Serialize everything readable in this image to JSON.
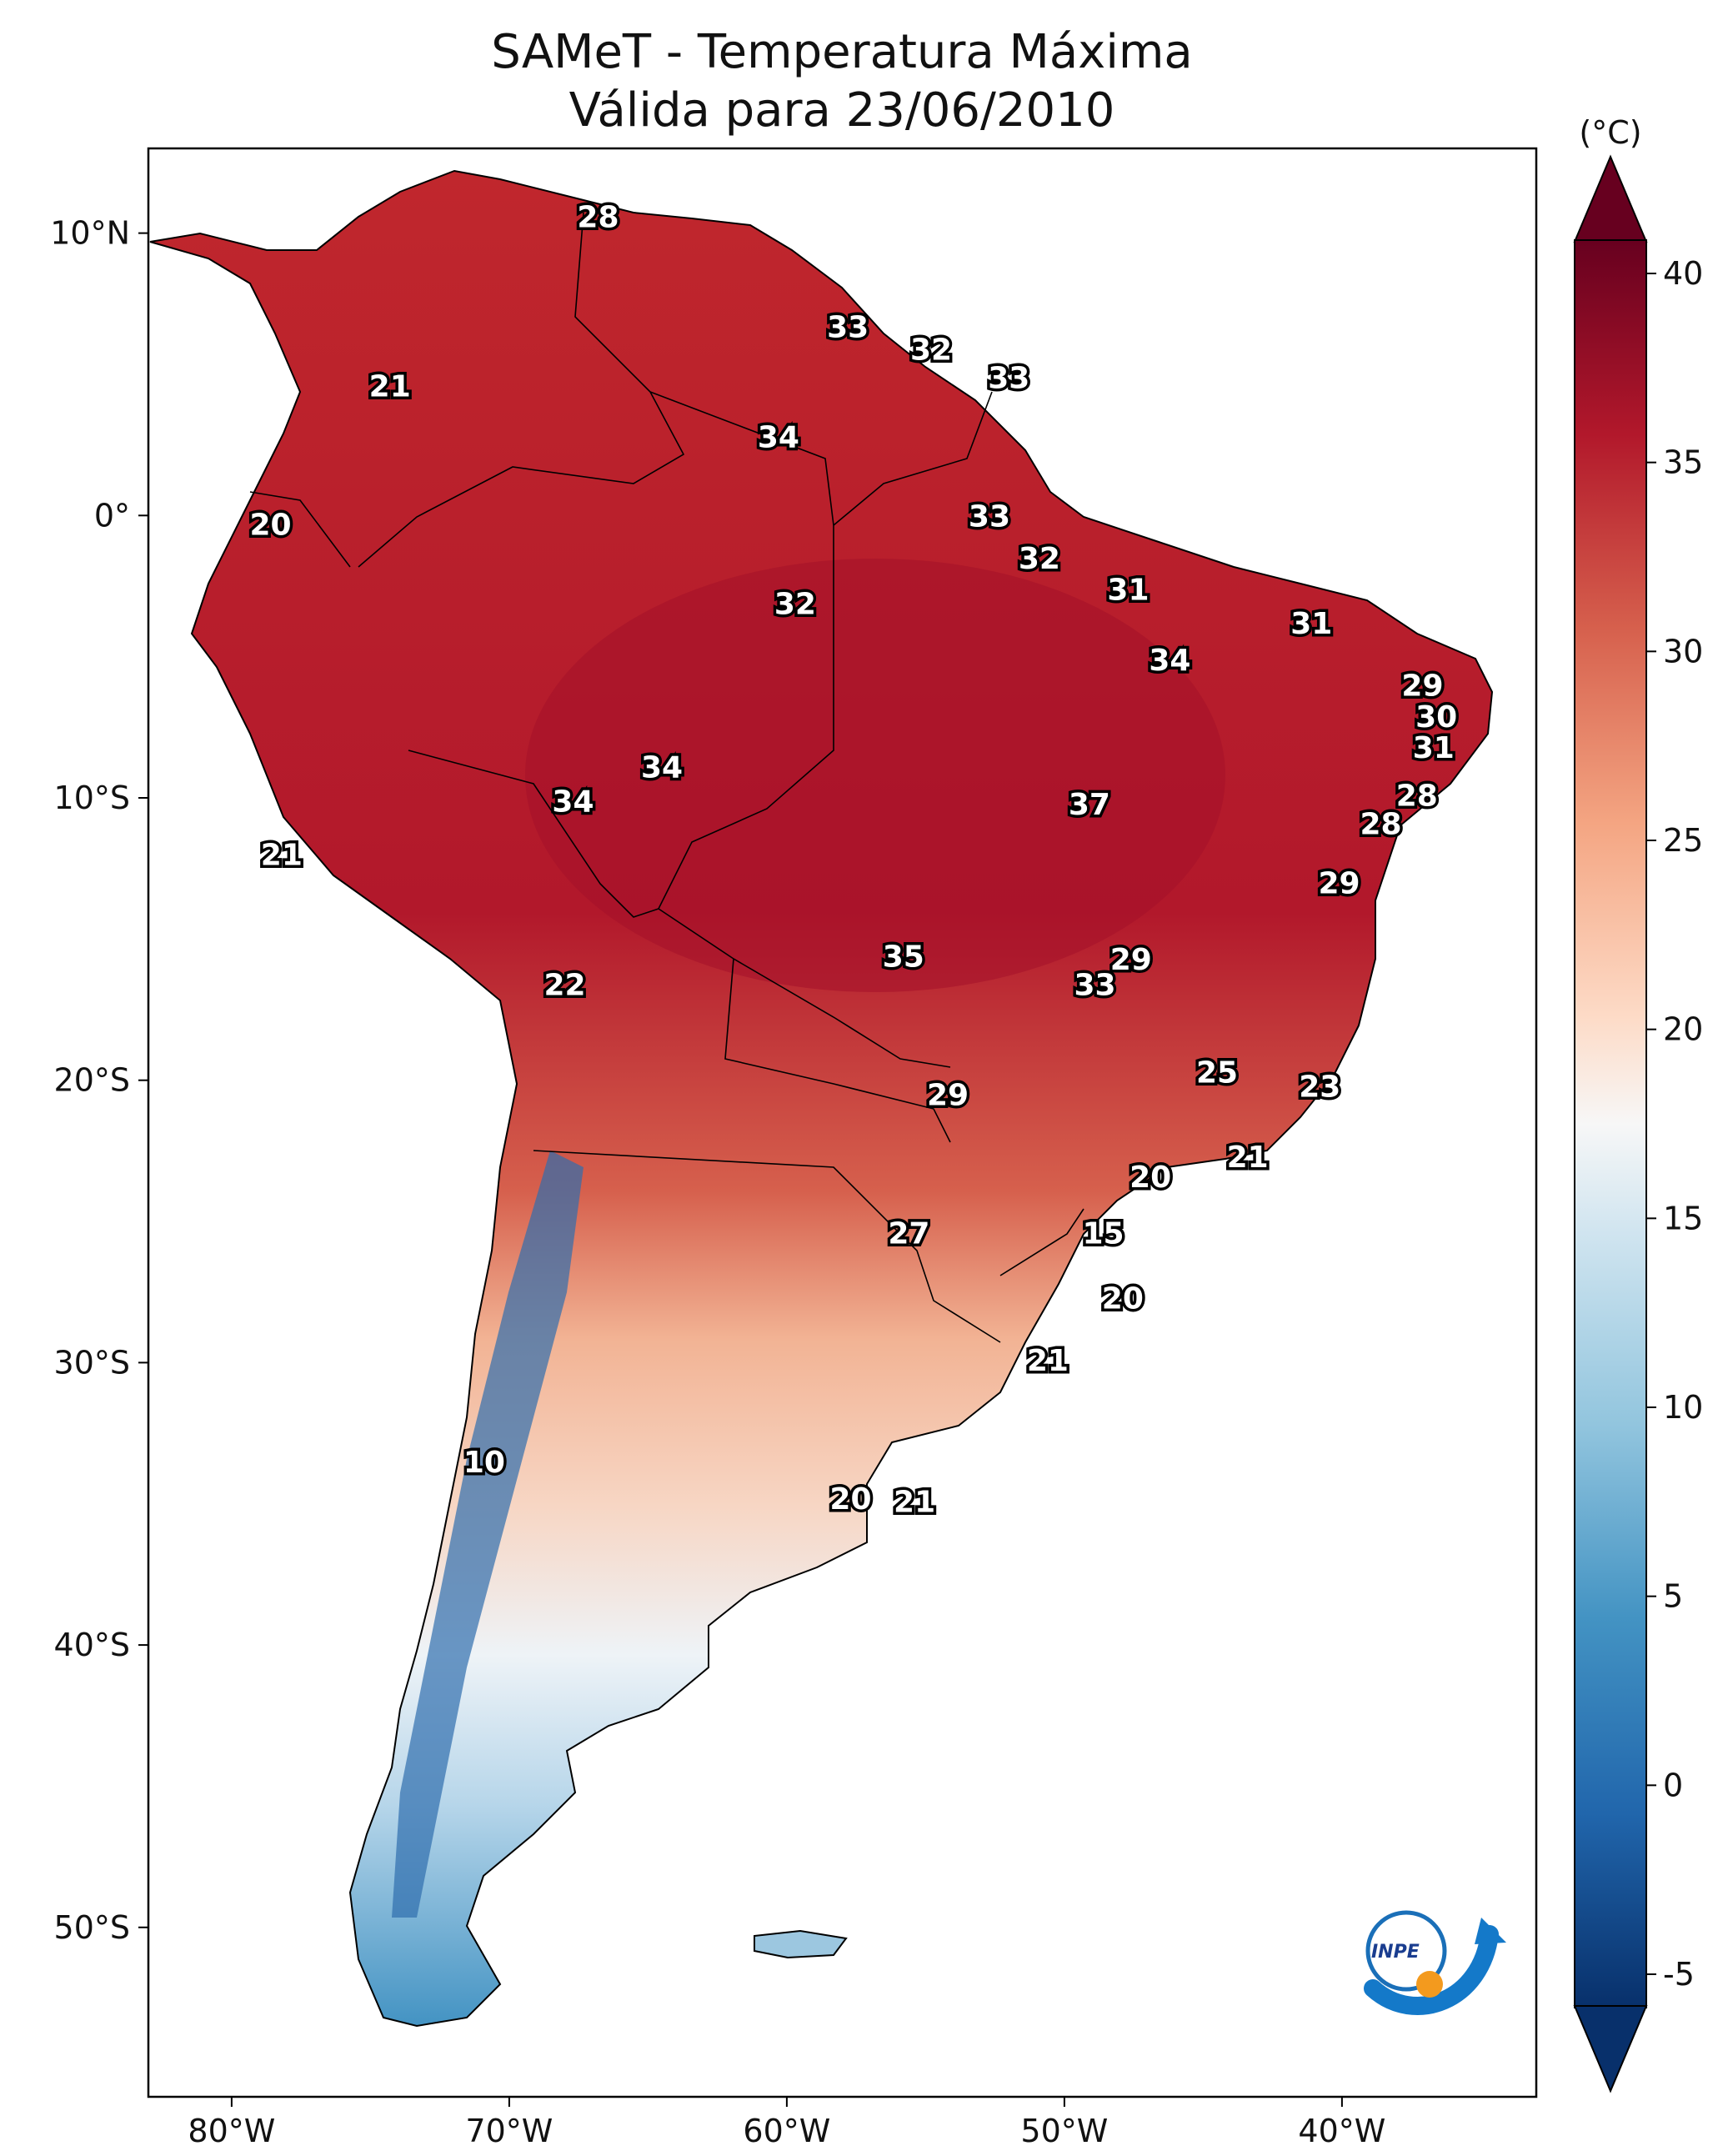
{
  "title": {
    "line1": "SAMeT - Temperatura Máxima",
    "line2": "Válida para 23/06/2010"
  },
  "colorbar": {
    "unit": "(°C)",
    "ticks": [
      40,
      35,
      30,
      25,
      20,
      15,
      10,
      5,
      0,
      -5
    ],
    "range": [
      -5,
      40
    ],
    "colors": {
      "-5": "#08306b",
      "0": "#2166ac",
      "5": "#4393c3",
      "10": "#92c5de",
      "15": "#d1e5f0",
      "17.5": "#f7f7f7",
      "20": "#fddbc7",
      "25": "#f4a582",
      "30": "#d6604d",
      "35": "#b2182b",
      "40": "#67001f"
    }
  },
  "axes": {
    "lon_ticks": [
      {
        "lon": -80,
        "label": "80°W"
      },
      {
        "lon": -70,
        "label": "70°W"
      },
      {
        "lon": -60,
        "label": "60°W"
      },
      {
        "lon": -50,
        "label": "50°W"
      },
      {
        "lon": -40,
        "label": "40°W"
      }
    ],
    "lat_ticks": [
      {
        "lat": 10,
        "label": "10°N"
      },
      {
        "lat": 0,
        "label": "0°"
      },
      {
        "lat": -10,
        "label": "10°S"
      },
      {
        "lat": -20,
        "label": "20°S"
      },
      {
        "lat": -30,
        "label": "30°S"
      },
      {
        "lat": -40,
        "label": "40°S"
      },
      {
        "lat": -50,
        "label": "50°S"
      }
    ],
    "lon_range": [
      -83,
      -33
    ],
    "lat_range": [
      -56,
      13
    ]
  },
  "logo": {
    "text": "INPE",
    "icon": "inpe-logo-icon"
  },
  "labels": [
    {
      "lon": -66.8,
      "lat": 10.6,
      "text": "28"
    },
    {
      "lon": -74.3,
      "lat": 4.6,
      "text": "21"
    },
    {
      "lon": -57.8,
      "lat": 6.7,
      "text": "33"
    },
    {
      "lon": -54.8,
      "lat": 5.9,
      "text": "32"
    },
    {
      "lon": -52.0,
      "lat": 4.9,
      "text": "33"
    },
    {
      "lon": -60.3,
      "lat": 2.8,
      "text": "34"
    },
    {
      "lon": -78.6,
      "lat": -0.3,
      "text": "20"
    },
    {
      "lon": -52.7,
      "lat": 0.0,
      "text": "33"
    },
    {
      "lon": -50.9,
      "lat": -1.5,
      "text": "32"
    },
    {
      "lon": -59.7,
      "lat": -3.1,
      "text": "32"
    },
    {
      "lon": -47.7,
      "lat": -2.6,
      "text": "31"
    },
    {
      "lon": -41.1,
      "lat": -3.8,
      "text": "31"
    },
    {
      "lon": -46.2,
      "lat": -5.1,
      "text": "34"
    },
    {
      "lon": -37.1,
      "lat": -6.0,
      "text": "29"
    },
    {
      "lon": -36.6,
      "lat": -7.1,
      "text": "30"
    },
    {
      "lon": -36.7,
      "lat": -8.2,
      "text": "31"
    },
    {
      "lon": -64.5,
      "lat": -8.9,
      "text": "34"
    },
    {
      "lon": -67.7,
      "lat": -10.1,
      "text": "34"
    },
    {
      "lon": -49.1,
      "lat": -10.2,
      "text": "37"
    },
    {
      "lon": -37.3,
      "lat": -9.9,
      "text": "28"
    },
    {
      "lon": -38.6,
      "lat": -10.9,
      "text": "28"
    },
    {
      "lon": -78.2,
      "lat": -12.0,
      "text": "21"
    },
    {
      "lon": -40.1,
      "lat": -13.0,
      "text": "29"
    },
    {
      "lon": -55.8,
      "lat": -15.6,
      "text": "35"
    },
    {
      "lon": -47.6,
      "lat": -15.7,
      "text": "29"
    },
    {
      "lon": -48.9,
      "lat": -16.6,
      "text": "33"
    },
    {
      "lon": -68.0,
      "lat": -16.6,
      "text": "22"
    },
    {
      "lon": -44.5,
      "lat": -19.7,
      "text": "25"
    },
    {
      "lon": -40.8,
      "lat": -20.2,
      "text": "23"
    },
    {
      "lon": -54.2,
      "lat": -20.5,
      "text": "29"
    },
    {
      "lon": -43.4,
      "lat": -22.7,
      "text": "21"
    },
    {
      "lon": -46.9,
      "lat": -23.4,
      "text": "20"
    },
    {
      "lon": -55.6,
      "lat": -25.4,
      "text": "27"
    },
    {
      "lon": -48.6,
      "lat": -25.4,
      "text": "15"
    },
    {
      "lon": -47.9,
      "lat": -27.7,
      "text": "20"
    },
    {
      "lon": -50.6,
      "lat": -29.9,
      "text": "21"
    },
    {
      "lon": -70.9,
      "lat": -33.5,
      "text": "10"
    },
    {
      "lon": -57.7,
      "lat": -34.8,
      "text": "20"
    },
    {
      "lon": -55.4,
      "lat": -34.9,
      "text": "21"
    }
  ]
}
